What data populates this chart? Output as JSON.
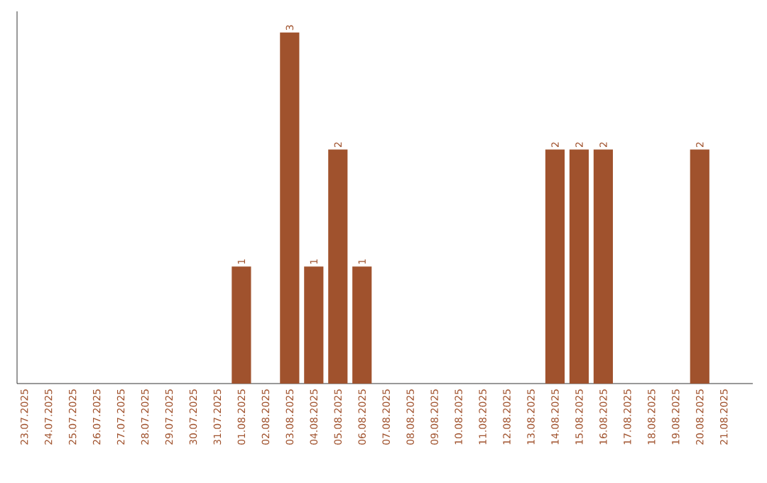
{
  "chart_data": {
    "type": "bar",
    "color": "#a0522d",
    "categories": [
      "23.07.2025",
      "24.07.2025",
      "25.07.2025",
      "26.07.2025",
      "27.07.2025",
      "28.07.2025",
      "29.07.2025",
      "30.07.2025",
      "31.07.2025",
      "01.08.2025",
      "02.08.2025",
      "03.08.2025",
      "04.08.2025",
      "05.08.2025",
      "06.08.2025",
      "07.08.2025",
      "08.08.2025",
      "09.08.2025",
      "10.08.2025",
      "11.08.2025",
      "12.08.2025",
      "13.08.2025",
      "14.08.2025",
      "15.08.2025",
      "16.08.2025",
      "17.08.2025",
      "18.08.2025",
      "19.08.2025",
      "20.08.2025",
      "21.08.2025"
    ],
    "values": [
      null,
      null,
      null,
      null,
      null,
      null,
      null,
      null,
      null,
      1,
      null,
      3,
      1,
      2,
      1,
      null,
      null,
      null,
      null,
      null,
      null,
      null,
      2,
      2,
      2,
      null,
      null,
      null,
      2,
      null
    ],
    "value_labels": [
      null,
      null,
      null,
      null,
      null,
      null,
      null,
      null,
      null,
      "1",
      null,
      "3",
      "1",
      "2",
      "1",
      null,
      null,
      null,
      null,
      null,
      null,
      null,
      "2",
      "2",
      "2",
      null,
      null,
      null,
      "2",
      null
    ],
    "tick_labels": "x"
  }
}
